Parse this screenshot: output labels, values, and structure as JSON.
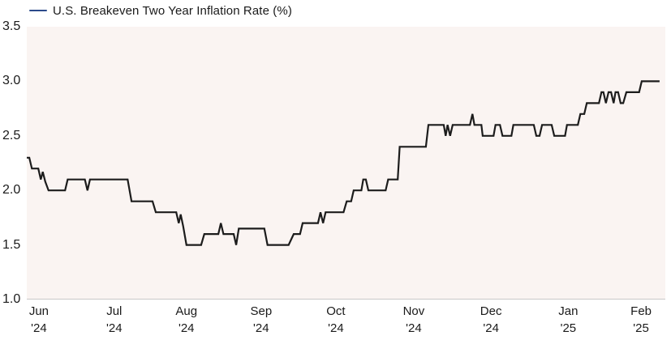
{
  "legend": {
    "label": "U.S. Breakeven Two Year Inflation Rate (%)"
  },
  "colors": {
    "legend_line": "#2b4a8a",
    "series_line": "#1c1c1c",
    "plot_background": "#faf4f2",
    "axis_line": "#c8c8c8",
    "text": "#1a1a1a",
    "page_background": "#ffffff"
  },
  "chart_data": {
    "type": "line",
    "title": "U.S. Breakeven Two Year Inflation Rate (%)",
    "ylabel": "",
    "xlabel": "",
    "ylim": [
      1.0,
      3.5
    ],
    "grid": false,
    "legend_position": "top-left",
    "yticks": [
      {
        "value": 3.5,
        "label": "3.5"
      },
      {
        "value": 3.0,
        "label": "3.0"
      },
      {
        "value": 2.5,
        "label": "2.5"
      },
      {
        "value": 2.0,
        "label": "2.0"
      },
      {
        "value": 1.5,
        "label": "1.5"
      },
      {
        "value": 1.0,
        "label": "1.0"
      }
    ],
    "xticks": [
      {
        "month": "Jun",
        "year": "'24",
        "pos": 0.019
      },
      {
        "month": "Jul",
        "year": "'24",
        "pos": 0.137
      },
      {
        "month": "Aug",
        "year": "'24",
        "pos": 0.25
      },
      {
        "month": "Sep",
        "year": "'24",
        "pos": 0.367
      },
      {
        "month": "Oct",
        "year": "'24",
        "pos": 0.484
      },
      {
        "month": "Nov",
        "year": "'24",
        "pos": 0.606
      },
      {
        "month": "Dec",
        "year": "'24",
        "pos": 0.727
      },
      {
        "month": "Jan",
        "year": "'25",
        "pos": 0.848
      },
      {
        "month": "Feb",
        "year": "'25",
        "pos": 0.962
      }
    ],
    "series": [
      {
        "name": "U.S. Breakeven Two Year Inflation Rate (%)",
        "points": [
          [
            0.0,
            2.3
          ],
          [
            0.004,
            2.3
          ],
          [
            0.008,
            2.2
          ],
          [
            0.018,
            2.2
          ],
          [
            0.022,
            2.1
          ],
          [
            0.025,
            2.17
          ],
          [
            0.029,
            2.08
          ],
          [
            0.034,
            2.0
          ],
          [
            0.06,
            2.0
          ],
          [
            0.064,
            2.1
          ],
          [
            0.091,
            2.1
          ],
          [
            0.095,
            2.0
          ],
          [
            0.099,
            2.1
          ],
          [
            0.158,
            2.1
          ],
          [
            0.164,
            1.9
          ],
          [
            0.197,
            1.9
          ],
          [
            0.202,
            1.8
          ],
          [
            0.234,
            1.8
          ],
          [
            0.238,
            1.7
          ],
          [
            0.241,
            1.78
          ],
          [
            0.245,
            1.67
          ],
          [
            0.25,
            1.5
          ],
          [
            0.273,
            1.5
          ],
          [
            0.278,
            1.6
          ],
          [
            0.3,
            1.6
          ],
          [
            0.304,
            1.7
          ],
          [
            0.308,
            1.6
          ],
          [
            0.324,
            1.6
          ],
          [
            0.328,
            1.5
          ],
          [
            0.332,
            1.65
          ],
          [
            0.372,
            1.65
          ],
          [
            0.377,
            1.5
          ],
          [
            0.41,
            1.5
          ],
          [
            0.418,
            1.6
          ],
          [
            0.428,
            1.6
          ],
          [
            0.432,
            1.7
          ],
          [
            0.456,
            1.7
          ],
          [
            0.46,
            1.8
          ],
          [
            0.464,
            1.7
          ],
          [
            0.468,
            1.8
          ],
          [
            0.496,
            1.8
          ],
          [
            0.501,
            1.9
          ],
          [
            0.508,
            1.9
          ],
          [
            0.512,
            2.0
          ],
          [
            0.524,
            2.0
          ],
          [
            0.527,
            2.1
          ],
          [
            0.531,
            2.1
          ],
          [
            0.535,
            2.0
          ],
          [
            0.562,
            2.0
          ],
          [
            0.566,
            2.1
          ],
          [
            0.581,
            2.1
          ],
          [
            0.584,
            2.4
          ],
          [
            0.625,
            2.4
          ],
          [
            0.629,
            2.6
          ],
          [
            0.653,
            2.6
          ],
          [
            0.656,
            2.5
          ],
          [
            0.659,
            2.6
          ],
          [
            0.663,
            2.5
          ],
          [
            0.667,
            2.6
          ],
          [
            0.694,
            2.6
          ],
          [
            0.698,
            2.7
          ],
          [
            0.701,
            2.6
          ],
          [
            0.712,
            2.6
          ],
          [
            0.714,
            2.5
          ],
          [
            0.731,
            2.5
          ],
          [
            0.734,
            2.6
          ],
          [
            0.741,
            2.6
          ],
          [
            0.745,
            2.5
          ],
          [
            0.759,
            2.5
          ],
          [
            0.762,
            2.6
          ],
          [
            0.794,
            2.6
          ],
          [
            0.798,
            2.5
          ],
          [
            0.803,
            2.5
          ],
          [
            0.807,
            2.6
          ],
          [
            0.822,
            2.6
          ],
          [
            0.826,
            2.5
          ],
          [
            0.843,
            2.5
          ],
          [
            0.846,
            2.6
          ],
          [
            0.863,
            2.6
          ],
          [
            0.867,
            2.7
          ],
          [
            0.873,
            2.7
          ],
          [
            0.877,
            2.8
          ],
          [
            0.896,
            2.8
          ],
          [
            0.9,
            2.9
          ],
          [
            0.903,
            2.9
          ],
          [
            0.907,
            2.8
          ],
          [
            0.911,
            2.9
          ],
          [
            0.915,
            2.9
          ],
          [
            0.919,
            2.8
          ],
          [
            0.922,
            2.9
          ],
          [
            0.926,
            2.9
          ],
          [
            0.93,
            2.8
          ],
          [
            0.934,
            2.8
          ],
          [
            0.939,
            2.9
          ],
          [
            0.959,
            2.9
          ],
          [
            0.963,
            3.0
          ],
          [
            0.991,
            3.0
          ]
        ]
      }
    ]
  }
}
